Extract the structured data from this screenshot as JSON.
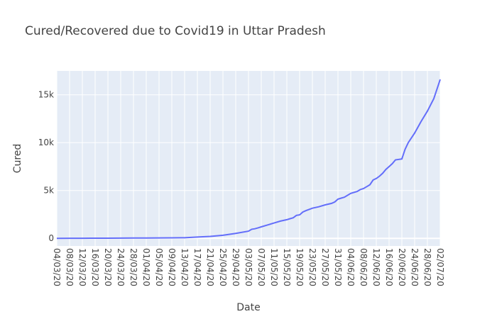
{
  "chart_data": {
    "type": "line",
    "title": "Cured/Recovered due to Covid19 in Uttar Pradesh",
    "xlabel": "Date",
    "ylabel": "Cured",
    "x_tick_labels": [
      "04/03/20",
      "08/03/20",
      "12/03/20",
      "16/03/20",
      "20/03/20",
      "24/03/20",
      "28/03/20",
      "01/04/20",
      "05/04/20",
      "09/04/20",
      "13/04/20",
      "17/04/20",
      "21/04/20",
      "25/04/20",
      "29/04/20",
      "03/05/20",
      "07/05/20",
      "11/05/20",
      "15/05/20",
      "19/05/20",
      "23/05/20",
      "27/05/20",
      "31/05/20",
      "04/06/20",
      "08/06/20",
      "12/06/20",
      "16/06/20",
      "20/06/20",
      "24/06/20",
      "28/06/20",
      "02/07/20"
    ],
    "y_ticks": [
      0,
      5000,
      10000,
      15000
    ],
    "y_tick_labels": [
      "0",
      "5k",
      "10k",
      "15k"
    ],
    "xlim": [
      "04/03/20",
      "02/07/20"
    ],
    "ylim": [
      -800,
      17500
    ],
    "grid": true,
    "series": [
      {
        "color": "#636efa",
        "x": [
          "04/03/20",
          "08/03/20",
          "12/03/20",
          "16/03/20",
          "20/03/20",
          "24/03/20",
          "28/03/20",
          "01/04/20",
          "05/04/20",
          "09/04/20",
          "13/04/20",
          "17/04/20",
          "21/04/20",
          "25/04/20",
          "29/04/20",
          "03/05/20",
          "04/05/20",
          "05/05/20",
          "06/05/20",
          "07/05/20",
          "09/05/20",
          "11/05/20",
          "13/05/20",
          "15/05/20",
          "16/05/20",
          "17/05/20",
          "18/05/20",
          "19/05/20",
          "20/05/20",
          "21/05/20",
          "23/05/20",
          "25/05/20",
          "27/05/20",
          "29/05/20",
          "30/05/20",
          "31/05/20",
          "01/06/20",
          "02/06/20",
          "04/06/20",
          "06/06/20",
          "07/06/20",
          "08/06/20",
          "09/06/20",
          "10/06/20",
          "11/06/20",
          "12/06/20",
          "13/06/20",
          "14/06/20",
          "15/06/20",
          "16/06/20",
          "17/06/20",
          "18/06/20",
          "20/06/20",
          "21/06/20",
          "22/06/20",
          "24/06/20",
          "26/06/20",
          "28/06/20",
          "30/06/20",
          "02/07/20"
        ],
        "values": [
          0,
          5,
          10,
          12,
          15,
          20,
          30,
          40,
          45,
          50,
          60,
          130,
          200,
          320,
          520,
          750,
          950,
          1000,
          1100,
          1200,
          1400,
          1600,
          1800,
          1950,
          2050,
          2150,
          2400,
          2450,
          2750,
          2900,
          3150,
          3300,
          3500,
          3650,
          3800,
          4100,
          4200,
          4300,
          4700,
          4900,
          5100,
          5200,
          5400,
          5600,
          6100,
          6250,
          6500,
          6800,
          7200,
          7500,
          7800,
          8200,
          8300,
          9300,
          10000,
          11000,
          12200,
          13300,
          14600,
          16600
        ]
      }
    ]
  }
}
